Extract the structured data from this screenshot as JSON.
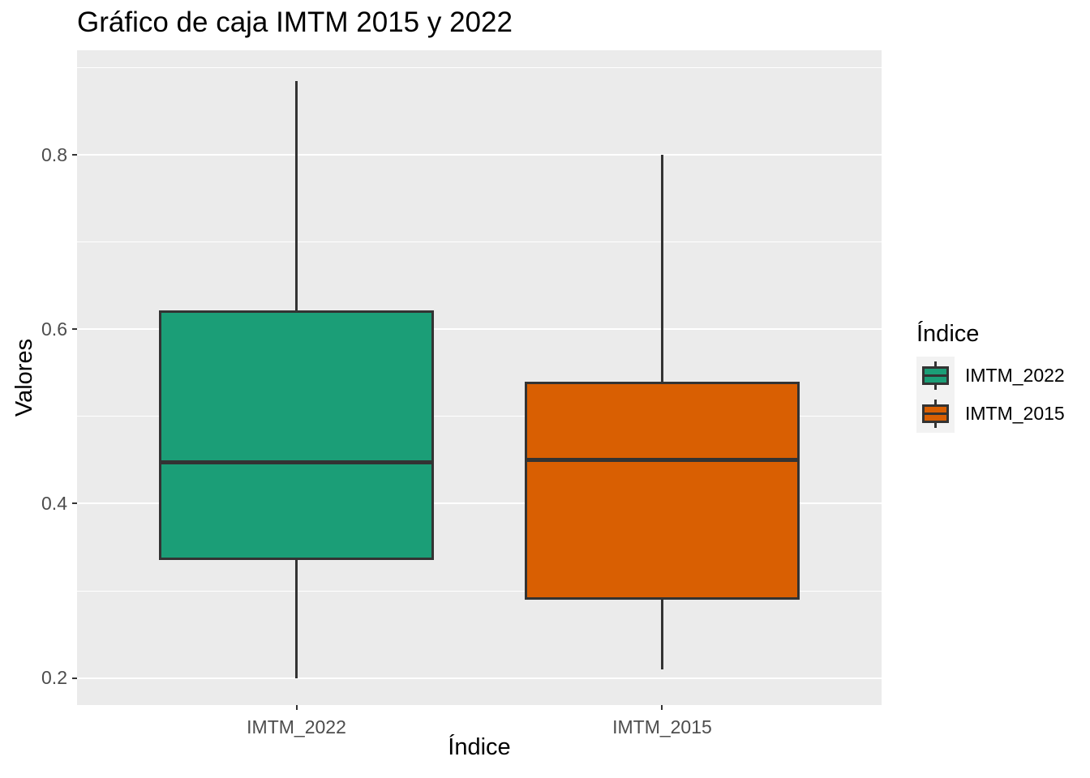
{
  "chart_data": {
    "type": "boxplot",
    "title": "Gráfico de caja IMTM 2015 y 2022",
    "xlabel": "Índice",
    "ylabel": "Valores",
    "categories": [
      "IMTM_2022",
      "IMTM_2015"
    ],
    "series": [
      {
        "name": "IMTM_2022",
        "color": "#1B9E77",
        "min": 0.2,
        "q1": 0.335,
        "median": 0.447,
        "q3": 0.622,
        "max": 0.885
      },
      {
        "name": "IMTM_2015",
        "color": "#D95F02",
        "min": 0.21,
        "q1": 0.29,
        "median": 0.45,
        "q3": 0.54,
        "max": 0.8
      }
    ],
    "y_ticks": [
      0.8,
      0.6,
      0.4,
      0.2
    ],
    "y_tick_labels": [
      "0.8",
      "0.6",
      "0.4",
      "0.2"
    ],
    "y_minor_ticks": [
      0.9,
      0.7,
      0.5,
      0.3
    ],
    "ylim": [
      0.169,
      0.92
    ],
    "grid": true,
    "legend": {
      "title": "Índice",
      "position": "right",
      "entries": [
        {
          "label": "IMTM_2022",
          "color": "#1B9E77"
        },
        {
          "label": "IMTM_2015",
          "color": "#D95F02"
        }
      ]
    }
  },
  "colors": {
    "background": "#FFFFFF",
    "panel_bg": "#EBEBEB",
    "grid": "#FFFFFF",
    "box_stroke": "#333333",
    "tick_text": "#4D4D4D",
    "text": "#000000",
    "legend_key_bg": "#F2F2F2"
  }
}
